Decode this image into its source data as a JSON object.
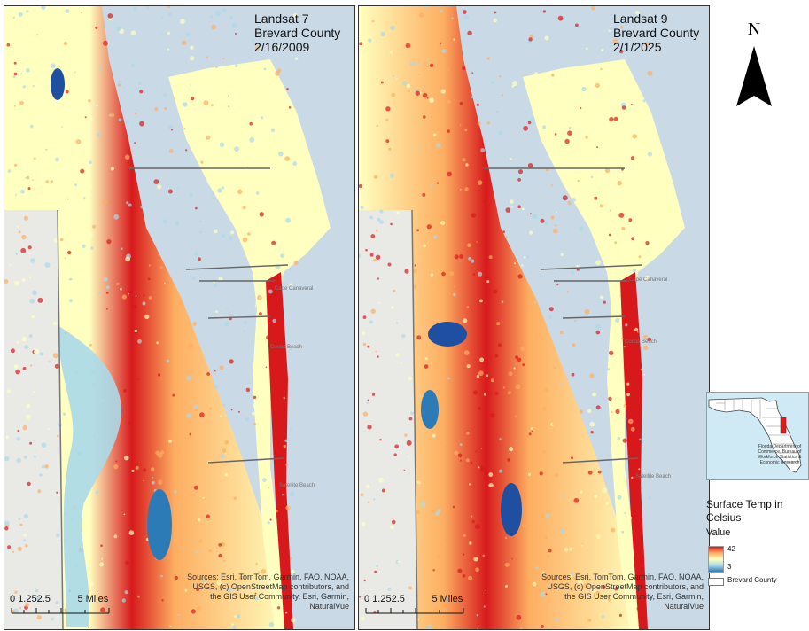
{
  "panels": [
    {
      "id": "left",
      "title_lines": [
        "Landsat 7",
        "Brevard County",
        "2/16/2009"
      ],
      "credit": "Sources: Esri, TomTom, Garmin, FAO, NOAA, USGS, (c) OpenStreetMap contributors, and the GIS User Community, Esri, Garmin, NaturalVue",
      "scale_numbers": "0 1.252.5",
      "scale_unit": "5 Miles",
      "places": [
        "Cape Canaveral",
        "Cocoa Beach",
        "Satellite Beach"
      ]
    },
    {
      "id": "right",
      "title_lines": [
        "Landsat 9",
        "Brevard County",
        "2/1/2025"
      ],
      "credit": "Sources: Esri, TomTom, Garmin, FAO, NOAA, USGS, (c) OpenStreetMap contributors, and the GIS User Community, Esri, Garmin, NaturalVue",
      "scale_numbers": "0 1.252.5",
      "scale_unit": "5 Miles",
      "places": [
        "Cape Canaveral",
        "Cocoa Beach",
        "Satellite Beach"
      ]
    }
  ],
  "north_arrow": {
    "label": "N"
  },
  "inset": {
    "note": "Florida Department of Commerce, Bureau of Workforce Statistics & Economic Research"
  },
  "legend": {
    "title": "Surface Temp in Celsius",
    "value_heading": "Value",
    "high": "42",
    "low": "3",
    "county_label": "Brevard County"
  },
  "colors": {
    "water": "#c9d9e6",
    "land_basemap": "#e9e9e6",
    "hot": "#d7191c",
    "warm": "#fdae61",
    "mild": "#ffffbf",
    "cool": "#abd9e9",
    "cold": "#2c7bb6",
    "deep_water": "#1f4fa0"
  }
}
